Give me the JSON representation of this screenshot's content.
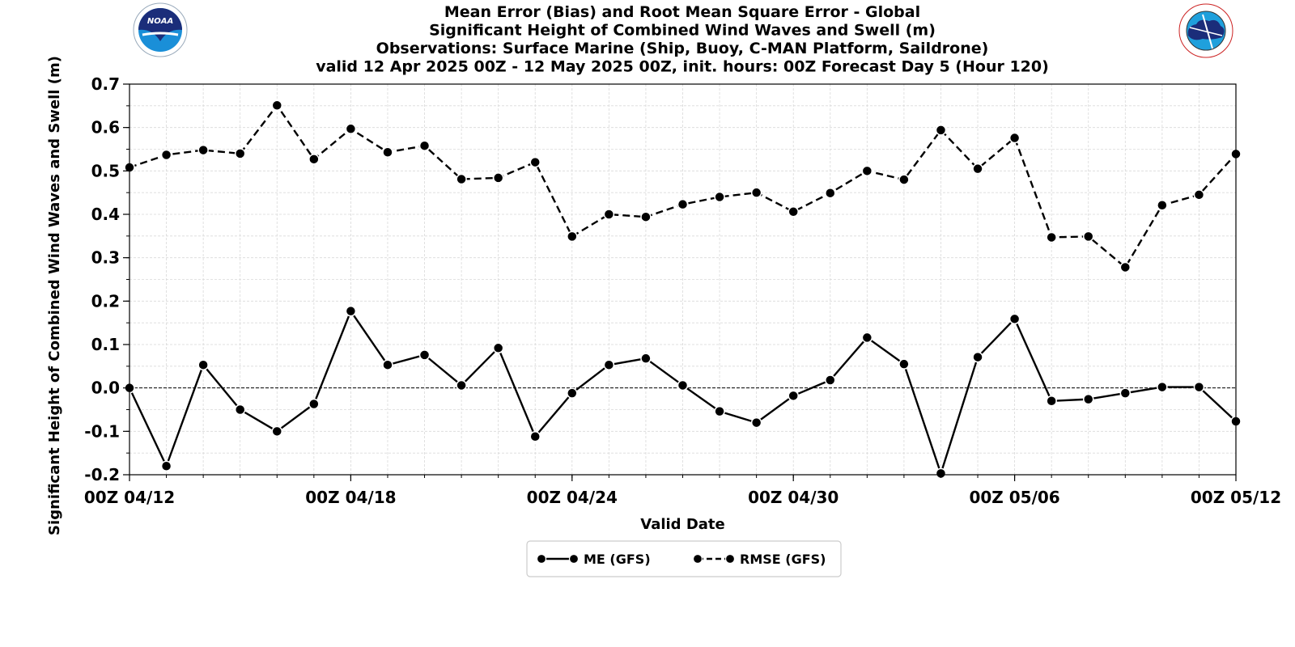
{
  "logos": {
    "left": {
      "name": "NOAA",
      "text": "NOAA",
      "ring_text": "NATIONAL OCEANIC AND ATMOSPHERIC ADMINISTRATION · U.S. DEPARTMENT OF COMMERCE"
    },
    "right": {
      "name": "National Weather Service",
      "ring_text": "NATIONAL WEATHER SERVICE"
    }
  },
  "chart_data": {
    "type": "line",
    "title_lines": [
      "Mean Error (Bias) and Root Mean Square Error - Global",
      "Significant Height of Combined Wind Waves and Swell (m)",
      "Observations: Surface Marine (Ship, Buoy, C-MAN Platform, Saildrone)",
      "valid 12 Apr 2025 00Z - 12 May 2025 00Z, init. hours: 00Z Forecast Day 5 (Hour 120)"
    ],
    "xlabel": "Valid Date",
    "ylabel": "Significant Height of Combined Wind Waves and Swell (m)",
    "x": [
      "04/12",
      "04/13",
      "04/14",
      "04/15",
      "04/16",
      "04/17",
      "04/18",
      "04/19",
      "04/20",
      "04/21",
      "04/22",
      "04/23",
      "04/24",
      "04/25",
      "04/26",
      "04/27",
      "04/28",
      "04/29",
      "04/30",
      "05/01",
      "05/02",
      "05/03",
      "05/04",
      "05/05",
      "05/06",
      "05/07",
      "05/08",
      "05/09",
      "05/10",
      "05/11",
      "05/12"
    ],
    "x_tick_labels": [
      "00Z 04/12",
      "00Z 04/18",
      "00Z 04/24",
      "00Z 04/30",
      "00Z 05/06",
      "00Z 05/12"
    ],
    "x_tick_index": [
      0,
      6,
      12,
      18,
      24,
      30
    ],
    "ylim": [
      -0.2,
      0.7
    ],
    "y_ticks": [
      -0.2,
      -0.1,
      0.0,
      0.1,
      0.2,
      0.3,
      0.4,
      0.5,
      0.6,
      0.7
    ],
    "y_tick_labels": [
      "-0.2",
      "-0.1",
      "0.0",
      "0.1",
      "0.2",
      "0.3",
      "0.4",
      "0.5",
      "0.6",
      "0.7"
    ],
    "grid": true,
    "zero_line": true,
    "legend_position": "bottom-center",
    "series": [
      {
        "name": "ME (GFS)",
        "style": "solid",
        "color": "#000000",
        "values": [
          0.0,
          -0.18,
          0.053,
          -0.05,
          -0.1,
          -0.037,
          0.177,
          0.053,
          0.076,
          0.006,
          0.092,
          -0.112,
          -0.012,
          0.053,
          0.068,
          0.006,
          -0.054,
          -0.08,
          -0.018,
          0.018,
          0.116,
          0.055,
          -0.197,
          0.071,
          0.159,
          -0.03,
          -0.026,
          -0.012,
          0.002,
          0.002,
          -0.077
        ]
      },
      {
        "name": "RMSE (GFS)",
        "style": "dashed",
        "color": "#000000",
        "values": [
          0.508,
          0.537,
          0.548,
          0.54,
          0.651,
          0.527,
          0.597,
          0.543,
          0.558,
          0.481,
          0.484,
          0.52,
          0.349,
          0.4,
          0.394,
          0.423,
          0.44,
          0.45,
          0.406,
          0.449,
          0.5,
          0.48,
          0.594,
          0.505,
          0.576,
          0.347,
          0.349,
          0.278,
          0.421,
          0.445,
          0.539
        ]
      }
    ]
  }
}
